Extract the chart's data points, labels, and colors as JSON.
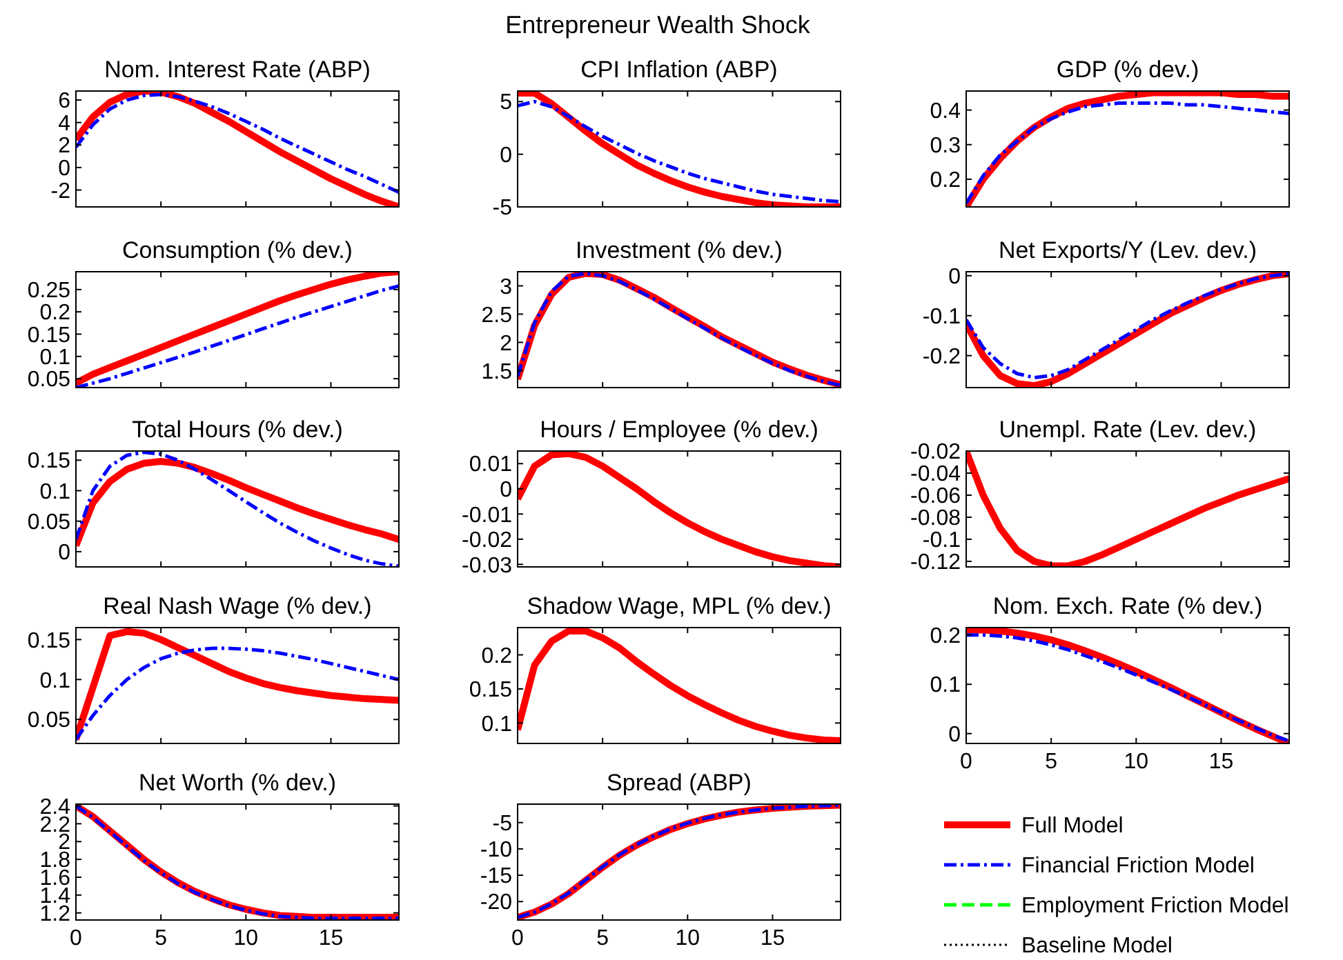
{
  "chart_data": [
    {
      "type": "other",
      "title": "Entrepreneur Wealth Shock"
    },
    {
      "type": "line",
      "title": "Nom. Interest Rate (ABP)",
      "x": [
        0,
        1,
        2,
        3,
        4,
        5,
        6,
        7,
        8,
        9,
        10,
        11,
        12,
        13,
        14,
        15,
        16,
        17,
        18,
        19
      ],
      "xlim": [
        0,
        19
      ],
      "xticks": [
        0,
        5,
        10,
        15
      ],
      "ylim": [
        -3.5,
        6.8
      ],
      "yticks": [
        -2,
        0,
        2,
        4,
        6
      ],
      "tick_labels": "y",
      "series": [
        {
          "color": "#ff0000",
          "line_style": "solid",
          "values": [
            2.5,
            4.5,
            5.8,
            6.5,
            6.8,
            6.7,
            6.3,
            5.7,
            4.9,
            4.1,
            3.2,
            2.3,
            1.4,
            0.6,
            -0.2,
            -1,
            -1.7,
            -2.4,
            -3,
            -3.5
          ]
        },
        {
          "color": "#0000ff",
          "line_style": "dashdot",
          "values": [
            1.8,
            3.8,
            5.2,
            6.0,
            6.4,
            6.5,
            6.3,
            5.9,
            5.4,
            4.8,
            4.1,
            3.4,
            2.6,
            1.9,
            1.2,
            0.5,
            -0.2,
            -0.8,
            -1.5,
            -2.2
          ]
        }
      ]
    },
    {
      "type": "line",
      "title": "CPI Inflation (ABP)",
      "x": [
        0,
        1,
        2,
        3,
        4,
        5,
        6,
        7,
        8,
        9,
        10,
        11,
        12,
        13,
        14,
        15,
        16,
        17,
        18,
        19
      ],
      "xlim": [
        0,
        19
      ],
      "xticks": [
        0,
        5,
        10,
        15
      ],
      "ylim": [
        -5,
        6
      ],
      "yticks": [
        -5,
        0,
        5
      ],
      "tick_labels": "y",
      "series": [
        {
          "color": "#ff0000",
          "line_style": "solid",
          "values": [
            5.8,
            5.8,
            4.8,
            3.5,
            2.2,
            1,
            0,
            -1,
            -1.8,
            -2.5,
            -3.1,
            -3.6,
            -4,
            -4.3,
            -4.6,
            -4.8,
            -4.9,
            -5,
            -5,
            -5
          ]
        },
        {
          "color": "#0000ff",
          "line_style": "dashdot",
          "values": [
            4.6,
            5,
            4.5,
            3.6,
            2.6,
            1.7,
            0.9,
            0.1,
            -0.6,
            -1.2,
            -1.8,
            -2.3,
            -2.7,
            -3.1,
            -3.5,
            -3.8,
            -4,
            -4.2,
            -4.4,
            -4.5
          ]
        }
      ]
    },
    {
      "type": "line",
      "title": "GDP (% dev.)",
      "x": [
        0,
        1,
        2,
        3,
        4,
        5,
        6,
        7,
        8,
        9,
        10,
        11,
        12,
        13,
        14,
        15,
        16,
        17,
        18,
        19
      ],
      "xlim": [
        0,
        19
      ],
      "xticks": [
        0,
        5,
        10,
        15
      ],
      "ylim": [
        0.12,
        0.455
      ],
      "yticks": [
        0.2,
        0.3,
        0.4
      ],
      "tick_labels": "y",
      "series": [
        {
          "color": "#ff0000",
          "line_style": "solid",
          "values": [
            0.12,
            0.2,
            0.26,
            0.31,
            0.35,
            0.38,
            0.405,
            0.42,
            0.43,
            0.44,
            0.445,
            0.45,
            0.45,
            0.45,
            0.45,
            0.45,
            0.445,
            0.445,
            0.44,
            0.44
          ]
        },
        {
          "color": "#0000ff",
          "line_style": "dashdot",
          "values": [
            0.13,
            0.21,
            0.27,
            0.31,
            0.35,
            0.375,
            0.395,
            0.41,
            0.415,
            0.42,
            0.42,
            0.42,
            0.42,
            0.415,
            0.415,
            0.41,
            0.405,
            0.4,
            0.395,
            0.39
          ]
        }
      ]
    },
    {
      "type": "line",
      "title": "Consumption (% dev.)",
      "x": [
        0,
        1,
        2,
        3,
        4,
        5,
        6,
        7,
        8,
        9,
        10,
        11,
        12,
        13,
        14,
        15,
        16,
        17,
        18,
        19
      ],
      "xlim": [
        0,
        19
      ],
      "xticks": [
        0,
        5,
        10,
        15
      ],
      "ylim": [
        0.03,
        0.29
      ],
      "yticks": [
        0.05,
        0.1,
        0.15,
        0.2,
        0.25
      ],
      "tick_labels": "y",
      "series": [
        {
          "color": "#ff0000",
          "line_style": "solid",
          "values": [
            0.04,
            0.06,
            0.075,
            0.09,
            0.105,
            0.12,
            0.135,
            0.15,
            0.165,
            0.18,
            0.195,
            0.21,
            0.225,
            0.238,
            0.25,
            0.262,
            0.272,
            0.28,
            0.287,
            0.29
          ]
        },
        {
          "color": "#0000ff",
          "line_style": "dashdot",
          "values": [
            0.03,
            0.04,
            0.05,
            0.062,
            0.074,
            0.086,
            0.098,
            0.11,
            0.123,
            0.136,
            0.149,
            0.162,
            0.175,
            0.188,
            0.2,
            0.212,
            0.224,
            0.236,
            0.248,
            0.258
          ]
        }
      ]
    },
    {
      "type": "line",
      "title": "Investment (% dev.)",
      "x": [
        0,
        1,
        2,
        3,
        4,
        5,
        6,
        7,
        8,
        9,
        10,
        11,
        12,
        13,
        14,
        15,
        16,
        17,
        18,
        19
      ],
      "xlim": [
        0,
        19
      ],
      "xticks": [
        0,
        5,
        10,
        15
      ],
      "ylim": [
        1.2,
        3.25
      ],
      "yticks": [
        1.5,
        2,
        2.5,
        3
      ],
      "tick_labels": "y",
      "series": [
        {
          "color": "#ff0000",
          "line_style": "solid",
          "values": [
            1.35,
            2.3,
            2.85,
            3.15,
            3.22,
            3.2,
            3.1,
            2.95,
            2.8,
            2.62,
            2.45,
            2.28,
            2.1,
            1.95,
            1.8,
            1.65,
            1.53,
            1.42,
            1.33,
            1.25
          ]
        },
        {
          "color": "#0000ff",
          "line_style": "dashdot",
          "values": [
            1.4,
            2.35,
            2.9,
            3.17,
            3.22,
            3.18,
            3.08,
            2.93,
            2.77,
            2.6,
            2.42,
            2.25,
            2.08,
            1.92,
            1.77,
            1.63,
            1.5,
            1.4,
            1.31,
            1.24
          ]
        }
      ]
    },
    {
      "type": "line",
      "title": "Net Exports/Y (Lev. dev.)",
      "x": [
        0,
        1,
        2,
        3,
        4,
        5,
        6,
        7,
        8,
        9,
        10,
        11,
        12,
        13,
        14,
        15,
        16,
        17,
        18,
        19
      ],
      "xlim": [
        0,
        19
      ],
      "xticks": [
        0,
        5,
        10,
        15
      ],
      "ylim": [
        -0.28,
        0.01
      ],
      "yticks": [
        -0.2,
        -0.1,
        0
      ],
      "tick_labels": "y",
      "series": [
        {
          "color": "#ff0000",
          "line_style": "solid",
          "values": [
            -0.12,
            -0.2,
            -0.25,
            -0.27,
            -0.275,
            -0.265,
            -0.245,
            -0.22,
            -0.195,
            -0.17,
            -0.145,
            -0.12,
            -0.095,
            -0.075,
            -0.055,
            -0.037,
            -0.022,
            -0.01,
            0,
            0.005
          ]
        },
        {
          "color": "#0000ff",
          "line_style": "dashdot",
          "values": [
            -0.11,
            -0.18,
            -0.22,
            -0.245,
            -0.255,
            -0.25,
            -0.235,
            -0.21,
            -0.185,
            -0.16,
            -0.135,
            -0.11,
            -0.088,
            -0.068,
            -0.05,
            -0.034,
            -0.02,
            -0.008,
            0,
            0.005
          ]
        }
      ]
    },
    {
      "type": "line",
      "title": "Total Hours (% dev.)",
      "x": [
        0,
        1,
        2,
        3,
        4,
        5,
        6,
        7,
        8,
        9,
        10,
        11,
        12,
        13,
        14,
        15,
        16,
        17,
        18,
        19
      ],
      "xlim": [
        0,
        19
      ],
      "xticks": [
        0,
        5,
        10,
        15
      ],
      "ylim": [
        -0.025,
        0.165
      ],
      "yticks": [
        0,
        0.05,
        0.1,
        0.15
      ],
      "tick_labels": "y",
      "series": [
        {
          "color": "#ff0000",
          "line_style": "solid",
          "values": [
            0.01,
            0.08,
            0.115,
            0.135,
            0.145,
            0.148,
            0.145,
            0.138,
            0.128,
            0.117,
            0.105,
            0.094,
            0.083,
            0.072,
            0.062,
            0.053,
            0.044,
            0.036,
            0.029,
            0.02
          ]
        },
        {
          "color": "#0000ff",
          "line_style": "dashdot",
          "values": [
            0.02,
            0.1,
            0.14,
            0.158,
            0.163,
            0.16,
            0.15,
            0.135,
            0.118,
            0.1,
            0.082,
            0.064,
            0.047,
            0.032,
            0.018,
            0.006,
            -0.005,
            -0.014,
            -0.02,
            -0.024
          ]
        }
      ]
    },
    {
      "type": "line",
      "title": "Hours / Employee (% dev.)",
      "x": [
        0,
        1,
        2,
        3,
        4,
        5,
        6,
        7,
        8,
        9,
        10,
        11,
        12,
        13,
        14,
        15,
        16,
        17,
        18,
        19
      ],
      "xlim": [
        0,
        19
      ],
      "xticks": [
        0,
        5,
        10,
        15
      ],
      "ylim": [
        -0.031,
        0.015
      ],
      "yticks": [
        -0.03,
        -0.02,
        -0.01,
        0,
        0.01
      ],
      "tick_labels": "y",
      "series": [
        {
          "color": "#ff0000",
          "line_style": "solid",
          "values": [
            -0.004,
            0.009,
            0.0135,
            0.014,
            0.0125,
            0.009,
            0.0045,
            0,
            -0.005,
            -0.0095,
            -0.0135,
            -0.017,
            -0.02,
            -0.0225,
            -0.025,
            -0.027,
            -0.0285,
            -0.0295,
            -0.0305,
            -0.031
          ]
        }
      ]
    },
    {
      "type": "line",
      "title": "Unempl. Rate (Lev. dev.)",
      "x": [
        0,
        1,
        2,
        3,
        4,
        5,
        6,
        7,
        8,
        9,
        10,
        11,
        12,
        13,
        14,
        15,
        16,
        17,
        18,
        19
      ],
      "xlim": [
        0,
        19
      ],
      "xticks": [
        0,
        5,
        10,
        15
      ],
      "ylim": [
        -0.125,
        -0.02
      ],
      "yticks": [
        -0.12,
        -0.1,
        -0.08,
        -0.06,
        -0.04,
        -0.02
      ],
      "tick_labels": "y",
      "series": [
        {
          "color": "#ff0000",
          "line_style": "solid",
          "values": [
            -0.02,
            -0.06,
            -0.09,
            -0.11,
            -0.12,
            -0.124,
            -0.124,
            -0.12,
            -0.114,
            -0.107,
            -0.1,
            -0.093,
            -0.086,
            -0.079,
            -0.072,
            -0.066,
            -0.06,
            -0.055,
            -0.05,
            -0.045
          ]
        }
      ]
    },
    {
      "type": "line",
      "title": "Real Nash Wage (% dev.)",
      "x": [
        0,
        1,
        2,
        3,
        4,
        5,
        6,
        7,
        8,
        9,
        10,
        11,
        12,
        13,
        14,
        15,
        16,
        17,
        18,
        19
      ],
      "xlim": [
        0,
        19
      ],
      "xticks": [
        0,
        5,
        10,
        15
      ],
      "ylim": [
        0.02,
        0.165
      ],
      "yticks": [
        0.05,
        0.1,
        0.15
      ],
      "tick_labels": "y",
      "series": [
        {
          "color": "#ff0000",
          "line_style": "solid",
          "values": [
            0.025,
            0.09,
            0.155,
            0.16,
            0.158,
            0.15,
            0.14,
            0.13,
            0.12,
            0.11,
            0.102,
            0.095,
            0.09,
            0.086,
            0.083,
            0.08,
            0.078,
            0.076,
            0.075,
            0.074
          ]
        },
        {
          "color": "#0000ff",
          "line_style": "dashdot",
          "values": [
            0.025,
            0.055,
            0.08,
            0.1,
            0.115,
            0.126,
            0.133,
            0.137,
            0.139,
            0.139,
            0.138,
            0.136,
            0.133,
            0.129,
            0.125,
            0.12,
            0.115,
            0.11,
            0.105,
            0.1
          ]
        }
      ]
    },
    {
      "type": "line",
      "title": "Shadow Wage, MPL (% dev.)",
      "x": [
        0,
        1,
        2,
        3,
        4,
        5,
        6,
        7,
        8,
        9,
        10,
        11,
        12,
        13,
        14,
        15,
        16,
        17,
        18,
        19
      ],
      "xlim": [
        0,
        19
      ],
      "xticks": [
        0,
        5,
        10,
        15
      ],
      "ylim": [
        0.07,
        0.24
      ],
      "yticks": [
        0.1,
        0.15,
        0.2
      ],
      "tick_labels": "y",
      "series": [
        {
          "color": "#ff0000",
          "line_style": "solid",
          "values": [
            0.09,
            0.185,
            0.22,
            0.235,
            0.235,
            0.225,
            0.21,
            0.19,
            0.172,
            0.155,
            0.14,
            0.127,
            0.115,
            0.104,
            0.095,
            0.088,
            0.082,
            0.078,
            0.075,
            0.074
          ]
        }
      ]
    },
    {
      "type": "line",
      "title": "Nom. Exch. Rate (% dev.)",
      "x": [
        0,
        1,
        2,
        3,
        4,
        5,
        6,
        7,
        8,
        9,
        10,
        11,
        12,
        13,
        14,
        15,
        16,
        17,
        18,
        19
      ],
      "xlim": [
        0,
        19
      ],
      "xticks": [
        0,
        5,
        10,
        15
      ],
      "ylim": [
        -0.02,
        0.215
      ],
      "yticks": [
        0,
        0.1,
        0.2
      ],
      "series": [
        {
          "color": "#ff0000",
          "line_style": "solid",
          "values": [
            0.21,
            0.21,
            0.208,
            0.204,
            0.198,
            0.19,
            0.18,
            0.168,
            0.155,
            0.141,
            0.126,
            0.11,
            0.094,
            0.077,
            0.06,
            0.043,
            0.026,
            0.01,
            -0.005,
            -0.02
          ]
        },
        {
          "color": "#0000ff",
          "line_style": "dashdot",
          "values": [
            0.2,
            0.2,
            0.198,
            0.194,
            0.188,
            0.18,
            0.17,
            0.158,
            0.146,
            0.133,
            0.119,
            0.105,
            0.09,
            0.075,
            0.059,
            0.043,
            0.027,
            0.012,
            -0.003,
            -0.015
          ]
        }
      ]
    },
    {
      "type": "line",
      "title": "Net Worth (% dev.)",
      "x": [
        0,
        1,
        2,
        3,
        4,
        5,
        6,
        7,
        8,
        9,
        10,
        11,
        12,
        13,
        14,
        15,
        16,
        17,
        18,
        19
      ],
      "xlim": [
        0,
        19
      ],
      "xticks": [
        0,
        5,
        10,
        15
      ],
      "ylim": [
        1.12,
        2.42
      ],
      "yticks": [
        1.2,
        1.4,
        1.6,
        1.8,
        2,
        2.2,
        2.4
      ],
      "series": [
        {
          "color": "#ff0000",
          "line_style": "solid",
          "values": [
            2.4,
            2.28,
            2.12,
            1.96,
            1.8,
            1.66,
            1.54,
            1.44,
            1.36,
            1.29,
            1.24,
            1.2,
            1.17,
            1.16,
            1.15,
            1.15,
            1.15,
            1.15,
            1.15,
            1.15
          ]
        },
        {
          "color": "#0000ff",
          "line_style": "dashdot",
          "values": [
            2.4,
            2.27,
            2.11,
            1.95,
            1.79,
            1.65,
            1.53,
            1.43,
            1.35,
            1.28,
            1.23,
            1.19,
            1.16,
            1.15,
            1.14,
            1.14,
            1.14,
            1.14,
            1.14,
            1.14
          ]
        }
      ]
    },
    {
      "type": "line",
      "title": "Spread (ABP)",
      "x": [
        0,
        1,
        2,
        3,
        4,
        5,
        6,
        7,
        8,
        9,
        10,
        11,
        12,
        13,
        14,
        15,
        16,
        17,
        18,
        19
      ],
      "xlim": [
        0,
        19
      ],
      "xticks": [
        0,
        5,
        10,
        15
      ],
      "ylim": [
        -23.5,
        -1.5
      ],
      "yticks": [
        -20,
        -15,
        -10,
        -5
      ],
      "legend": "right",
      "series": [
        {
          "name": "Full Model",
          "color": "#ff0000",
          "line_style": "solid",
          "values": [
            -23,
            -22,
            -20.5,
            -18.5,
            -16,
            -13.5,
            -11.2,
            -9.3,
            -7.7,
            -6.3,
            -5.2,
            -4.3,
            -3.6,
            -3,
            -2.6,
            -2.3,
            -2.1,
            -1.9,
            -1.8,
            -1.7
          ]
        },
        {
          "name": "Financial Friction Model",
          "color": "#0000ff",
          "line_style": "dashdot",
          "values": [
            -23,
            -22,
            -20.4,
            -18.4,
            -15.9,
            -13.4,
            -11.1,
            -9.2,
            -7.6,
            -6.2,
            -5.1,
            -4.2,
            -3.5,
            -3,
            -2.6,
            -2.3,
            -2.1,
            -1.9,
            -1.8,
            -1.7
          ]
        },
        {
          "name": "Employment Friction Model",
          "color": "#00ff00",
          "line_style": "dashed",
          "values": [
            null,
            null,
            null,
            null,
            null,
            null,
            null,
            null,
            null,
            null,
            null,
            null,
            null,
            null,
            null,
            null,
            null,
            null,
            null,
            null
          ]
        },
        {
          "name": "Baseline Model",
          "color": "#000000",
          "line_style": "dotted",
          "values": [
            null,
            null,
            null,
            null,
            null,
            null,
            null,
            null,
            null,
            null,
            null,
            null,
            null,
            null,
            null,
            null,
            null,
            null,
            null,
            null
          ]
        }
      ]
    }
  ]
}
